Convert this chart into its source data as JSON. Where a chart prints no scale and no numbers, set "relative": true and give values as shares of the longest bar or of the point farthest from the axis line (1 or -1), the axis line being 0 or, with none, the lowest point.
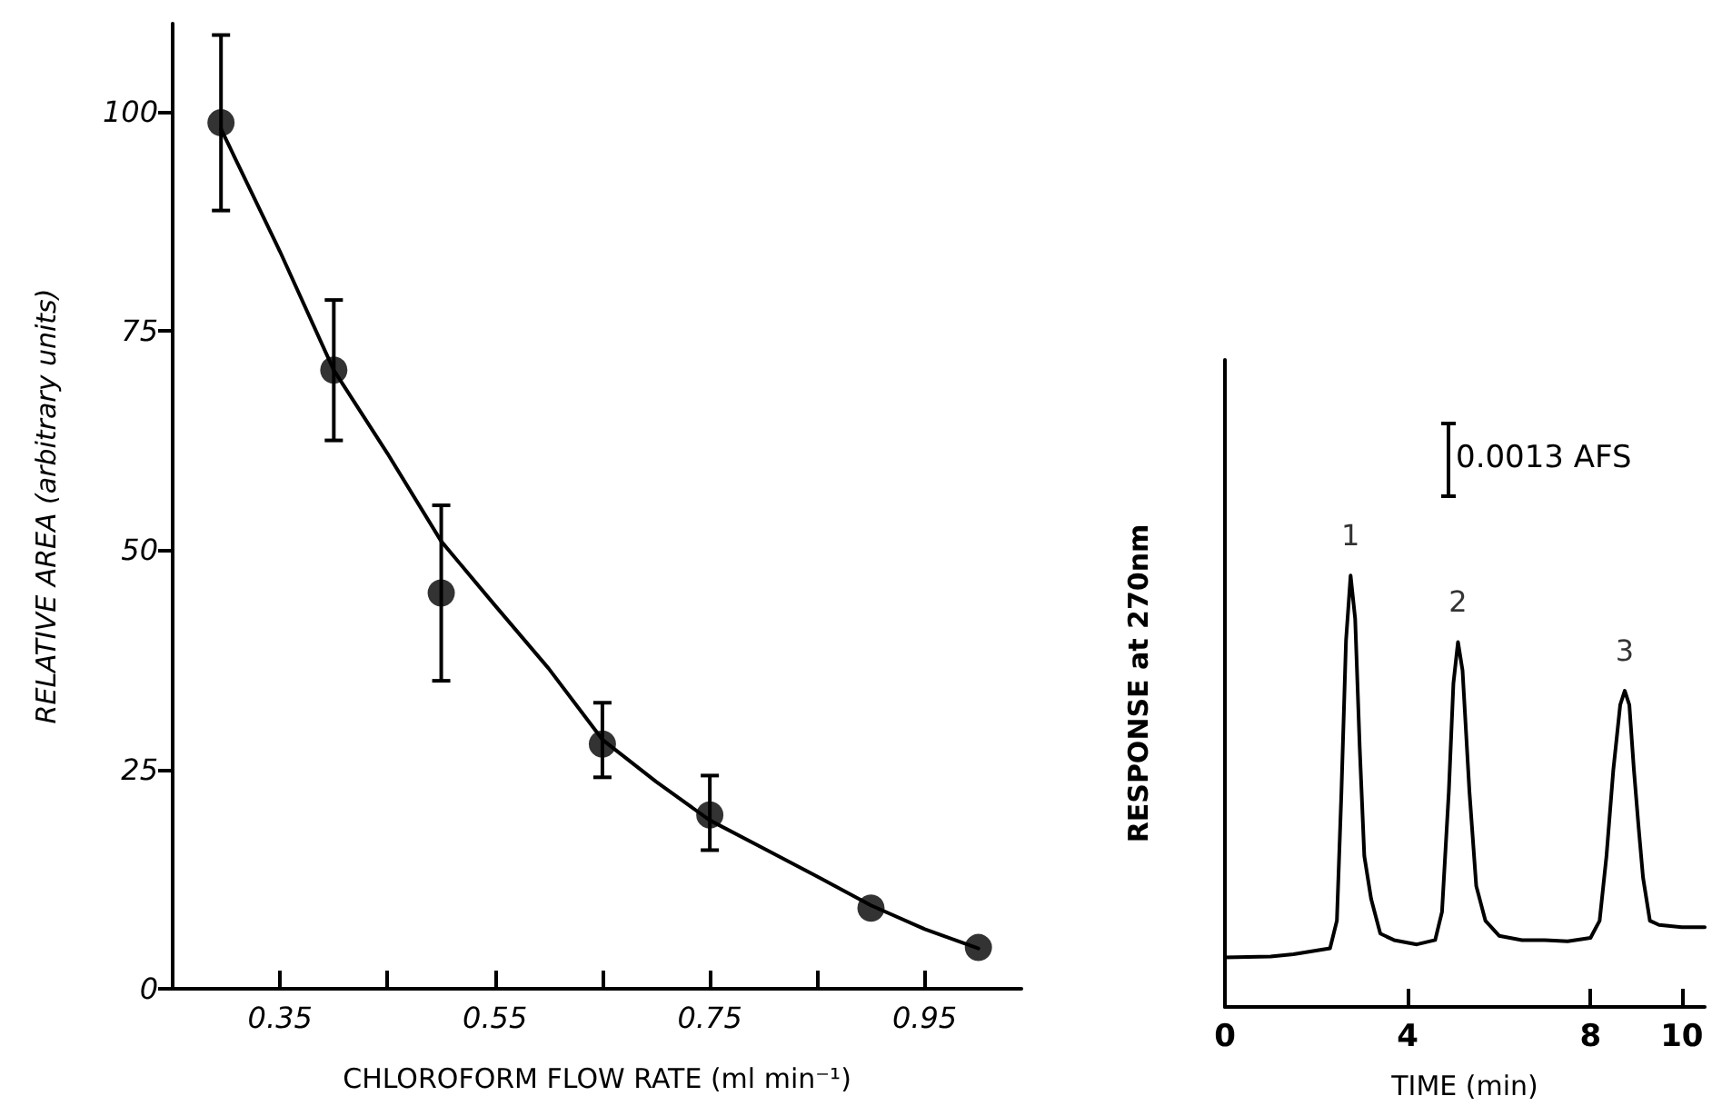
{
  "chart_data": [
    {
      "type": "scatter",
      "xlabel": "CHLOROFORM FLOW RATE (ml min⁻¹)",
      "ylabel": "RELATIVE AREA (arbitrary units)",
      "xlim": [
        0.25,
        1.04
      ],
      "xticks": [
        0.35,
        {
          "value": 0.45,
          "label": null
        },
        0.55,
        {
          "value": 0.65,
          "label": null
        },
        0.75,
        {
          "value": 0.85,
          "label": null
        },
        0.95
      ],
      "ylim": [
        0,
        110
      ],
      "yticks": [
        0,
        25,
        50,
        75,
        100
      ],
      "grid": false,
      "marker": "circle",
      "series": [
        {
          "color": "#000000",
          "x": [
            0.295,
            0.4,
            0.5,
            0.65,
            0.75,
            0.9,
            1.0
          ],
          "values": [
            98.7,
            70.5,
            45.1,
            27.9,
            19.8,
            9.2,
            4.7
          ],
          "errors": [
            10,
            8,
            10,
            [
              24.1,
              32.6
            ],
            [
              15.8,
              24.3
            ],
            null,
            null
          ]
        },
        {
          "type": "line",
          "color": "#000000",
          "marker": "none",
          "line_style": "solid",
          "x": [
            0.295,
            0.35,
            0.4,
            0.45,
            0.5,
            0.55,
            0.6,
            0.65,
            0.7,
            0.75,
            0.8,
            0.85,
            0.9,
            0.95,
            1.0
          ],
          "values": [
            98.0,
            84.0,
            70.5,
            61.0,
            51.0,
            43.7,
            36.5,
            28.4,
            23.6,
            19.2,
            16.0,
            12.8,
            9.5,
            6.8,
            4.6
          ]
        }
      ]
    },
    {
      "type": "line",
      "relative": true,
      "xlabel": "TIME (min)",
      "ylabel": "RESPONSE at 270nm",
      "xlim": [
        0,
        10.5
      ],
      "xticks": [
        0,
        4,
        8,
        10
      ],
      "grid": false,
      "marker": "none",
      "line_style": "solid",
      "annotations": [
        {
          "text": "1",
          "x": 2.75,
          "y": 1.0
        },
        {
          "text": "2",
          "x": 5.1,
          "y": 0.846
        },
        {
          "text": "3",
          "x": 8.75,
          "y": 0.733
        },
        "0.0013 AFS"
      ],
      "series": [
        {
          "color": "#000000",
          "x": [
            0,
            1.0,
            1.5,
            2.3,
            2.45,
            2.55,
            2.65,
            2.75,
            2.85,
            2.95,
            3.05,
            3.2,
            3.4,
            3.7,
            4.2,
            4.6,
            4.75,
            4.9,
            5.0,
            5.1,
            5.2,
            5.35,
            5.5,
            5.7,
            6.0,
            6.5,
            7.0,
            7.5,
            8.0,
            8.2,
            8.35,
            8.5,
            8.65,
            8.75,
            8.85,
            8.95,
            9.05,
            9.15,
            9.3,
            9.5,
            10.0,
            10.5
          ],
          "values": [
            0.115,
            0.117,
            0.122,
            0.136,
            0.2,
            0.5,
            0.85,
            1.0,
            0.9,
            0.6,
            0.35,
            0.25,
            0.17,
            0.155,
            0.145,
            0.155,
            0.22,
            0.5,
            0.75,
            0.846,
            0.78,
            0.5,
            0.28,
            0.2,
            0.165,
            0.155,
            0.155,
            0.152,
            0.16,
            0.2,
            0.35,
            0.55,
            0.7,
            0.733,
            0.7,
            0.55,
            0.42,
            0.3,
            0.2,
            0.19,
            0.185,
            0.185
          ]
        }
      ]
    }
  ]
}
